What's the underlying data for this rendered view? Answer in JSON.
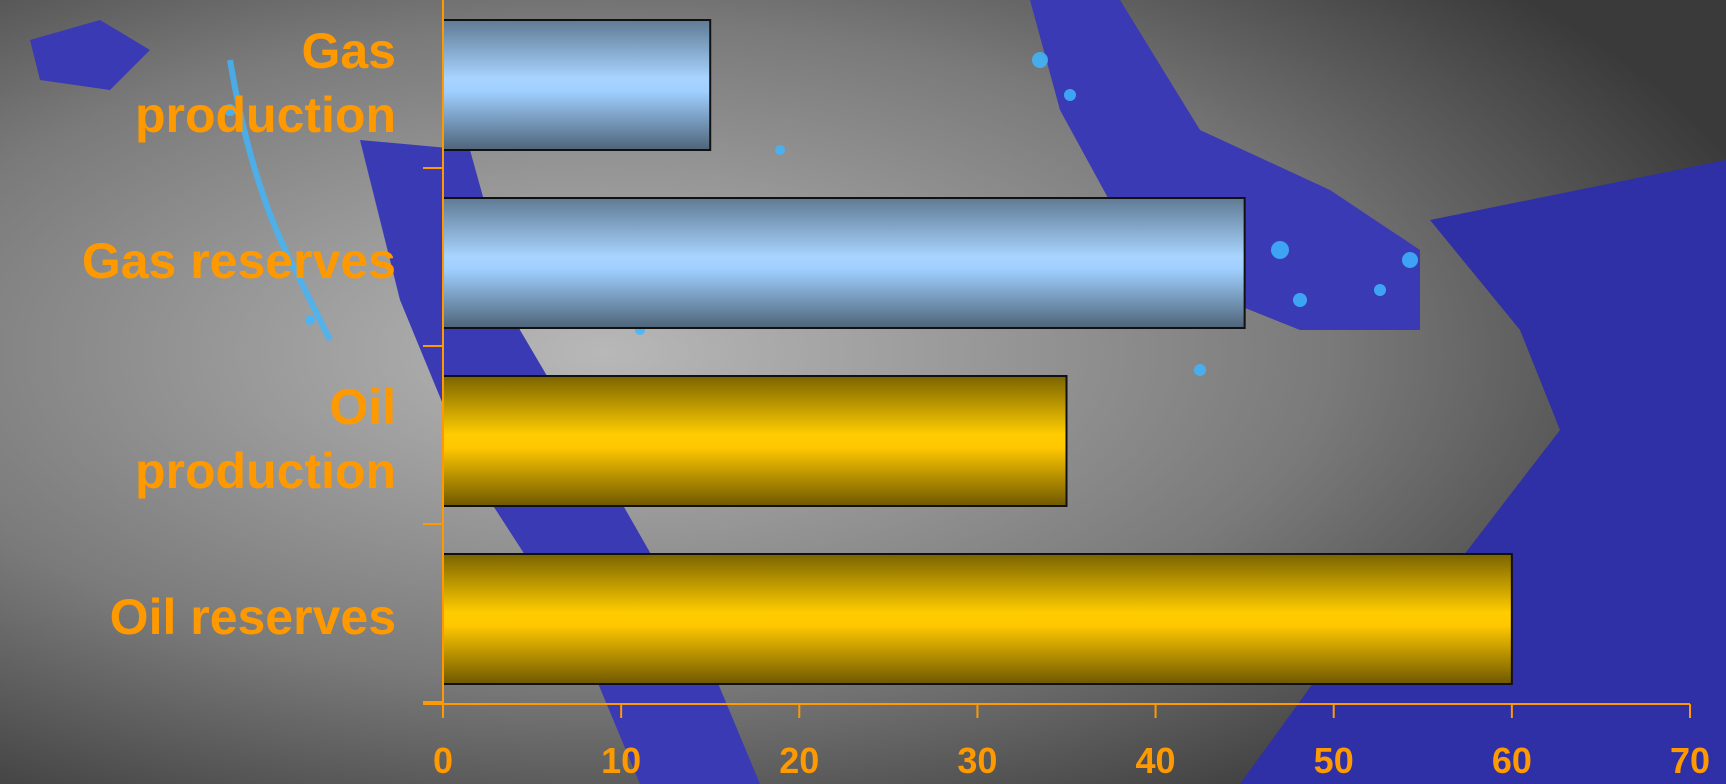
{
  "chart_data": {
    "type": "bar",
    "orientation": "horizontal",
    "categories": [
      "Gas\nproduction",
      "Gas reserves",
      "Oil\nproduction",
      "Oil reserves"
    ],
    "values": [
      15,
      45,
      35,
      60
    ],
    "bar_colors": [
      "#9fcfff",
      "#9fcfff",
      "#ffcc00",
      "#ffcc00"
    ],
    "xlim": [
      0,
      70
    ],
    "xticks": [
      "0",
      "10",
      "20",
      "30",
      "40",
      "50",
      "60",
      "70"
    ],
    "title": "",
    "xlabel": "",
    "ylabel": "",
    "grid": false,
    "legend": "none",
    "axis_color": "#ff9900",
    "label_color": "#ff9900"
  }
}
